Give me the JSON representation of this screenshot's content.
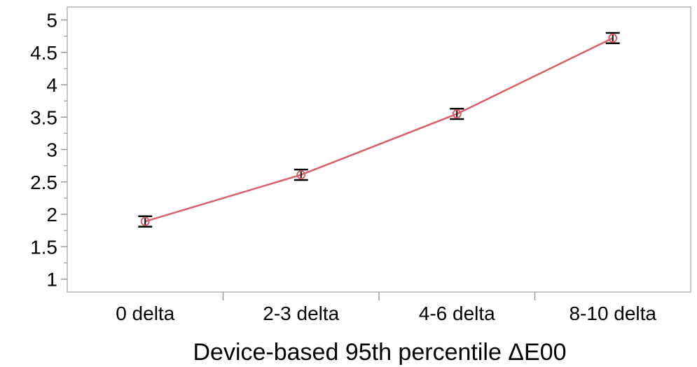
{
  "chart_data": {
    "type": "line",
    "title": "",
    "xlabel": "Device-based 95th percentile ΔE00",
    "ylabel": "",
    "categories": [
      "0 delta",
      "2-3 delta",
      "4-6 delta",
      "8-10 delta"
    ],
    "series": [
      {
        "values": [
          1.89,
          2.61,
          3.55,
          4.72
        ],
        "error_low": [
          1.81,
          2.53,
          3.47,
          4.64
        ],
        "error_high": [
          1.97,
          2.69,
          3.63,
          4.8
        ],
        "color": "#d9606b"
      }
    ],
    "ylim": [
      0.8,
      5.2
    ],
    "yticks": [
      "1",
      "1.5",
      "2",
      "2.5",
      "3",
      "3.5",
      "4",
      "4.5",
      "5"
    ],
    "grid": false,
    "legend": "none",
    "marker": "open-circle",
    "error_bar_color": "#000000",
    "frame_color": "#b5b5b5"
  }
}
